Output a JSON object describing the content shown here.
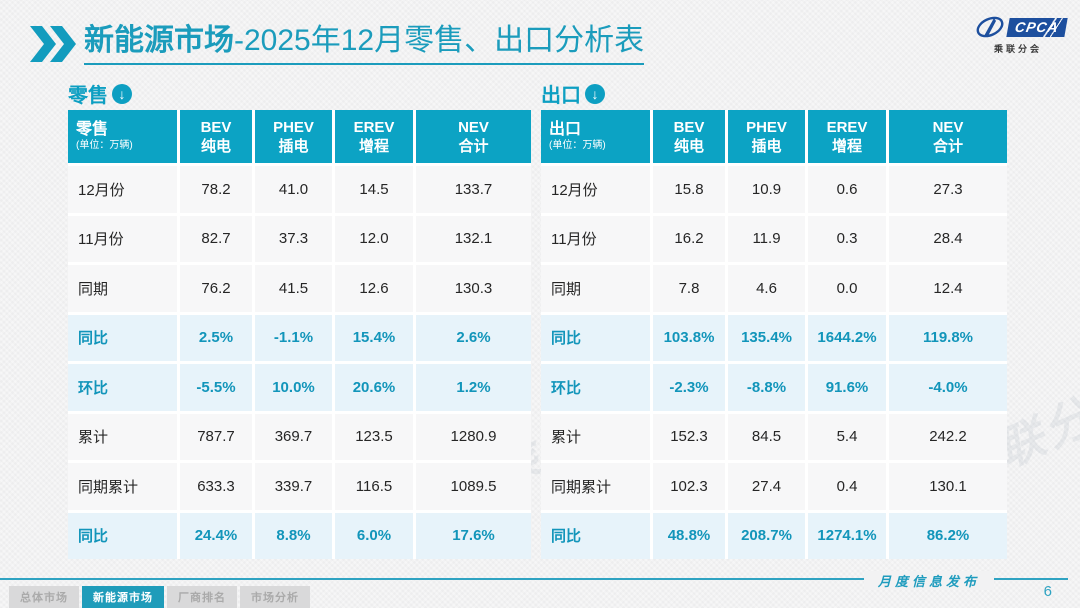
{
  "header": {
    "title_main": "新能源市场",
    "title_rest": "-2025年12月零售、出口分析表",
    "logo_text": "CPCA",
    "logo_sub": "乘联分会"
  },
  "icons": {
    "down_arrow": "↓"
  },
  "watermark": "CPCA 乘联分会",
  "tables": [
    {
      "section_label": "零售",
      "corner_label": "零售",
      "corner_unit": "(单位：万辆)",
      "columns": [
        {
          "en": "BEV",
          "zh": "纯电"
        },
        {
          "en": "PHEV",
          "zh": "插电"
        },
        {
          "en": "EREV",
          "zh": "增程"
        },
        {
          "en": "NEV",
          "zh": "合计"
        }
      ],
      "rows": [
        {
          "label": "12月份",
          "values": [
            "78.2",
            "41.0",
            "14.5",
            "133.7"
          ],
          "highlight": false
        },
        {
          "label": "11月份",
          "values": [
            "82.7",
            "37.3",
            "12.0",
            "132.1"
          ],
          "highlight": false
        },
        {
          "label": "同期",
          "values": [
            "76.2",
            "41.5",
            "12.6",
            "130.3"
          ],
          "highlight": false
        },
        {
          "label": "同比",
          "values": [
            "2.5%",
            "-1.1%",
            "15.4%",
            "2.6%"
          ],
          "highlight": true
        },
        {
          "label": "环比",
          "values": [
            "-5.5%",
            "10.0%",
            "20.6%",
            "1.2%"
          ],
          "highlight": true
        },
        {
          "label": "累计",
          "values": [
            "787.7",
            "369.7",
            "123.5",
            "1280.9"
          ],
          "highlight": false
        },
        {
          "label": "同期累计",
          "values": [
            "633.3",
            "339.7",
            "116.5",
            "1089.5"
          ],
          "highlight": false
        },
        {
          "label": "同比",
          "values": [
            "24.4%",
            "8.8%",
            "6.0%",
            "17.6%"
          ],
          "highlight": true
        }
      ]
    },
    {
      "section_label": "出口",
      "corner_label": "出口",
      "corner_unit": "(单位：万辆)",
      "columns": [
        {
          "en": "BEV",
          "zh": "纯电"
        },
        {
          "en": "PHEV",
          "zh": "插电"
        },
        {
          "en": "EREV",
          "zh": "增程"
        },
        {
          "en": "NEV",
          "zh": "合计"
        }
      ],
      "rows": [
        {
          "label": "12月份",
          "values": [
            "15.8",
            "10.9",
            "0.6",
            "27.3"
          ],
          "highlight": false
        },
        {
          "label": "11月份",
          "values": [
            "16.2",
            "11.9",
            "0.3",
            "28.4"
          ],
          "highlight": false
        },
        {
          "label": "同期",
          "values": [
            "7.8",
            "4.6",
            "0.0",
            "12.4"
          ],
          "highlight": false
        },
        {
          "label": "同比",
          "values": [
            "103.8%",
            "135.4%",
            "1644.2%",
            "119.8%"
          ],
          "highlight": true
        },
        {
          "label": "环比",
          "values": [
            "-2.3%",
            "-8.8%",
            "91.6%",
            "-4.0%"
          ],
          "highlight": true
        },
        {
          "label": "累计",
          "values": [
            "152.3",
            "84.5",
            "5.4",
            "242.2"
          ],
          "highlight": false
        },
        {
          "label": "同期累计",
          "values": [
            "102.3",
            "27.4",
            "0.4",
            "130.1"
          ],
          "highlight": false
        },
        {
          "label": "同比",
          "values": [
            "48.8%",
            "208.7%",
            "1274.1%",
            "86.2%"
          ],
          "highlight": true
        }
      ]
    }
  ],
  "footer": {
    "nav": [
      {
        "label": "总体市场",
        "active": false
      },
      {
        "label": "新能源市场",
        "active": true
      },
      {
        "label": "厂商排名",
        "active": false
      },
      {
        "label": "市场分析",
        "active": false
      }
    ],
    "publication": "月度信息发布",
    "page": "6"
  },
  "colors": {
    "accent_teal": "#0ca3c4",
    "title_teal": "#1b9cbc",
    "highlight_row_bg": "#e7f3fa",
    "logo_blue": "#1d4f9e"
  }
}
